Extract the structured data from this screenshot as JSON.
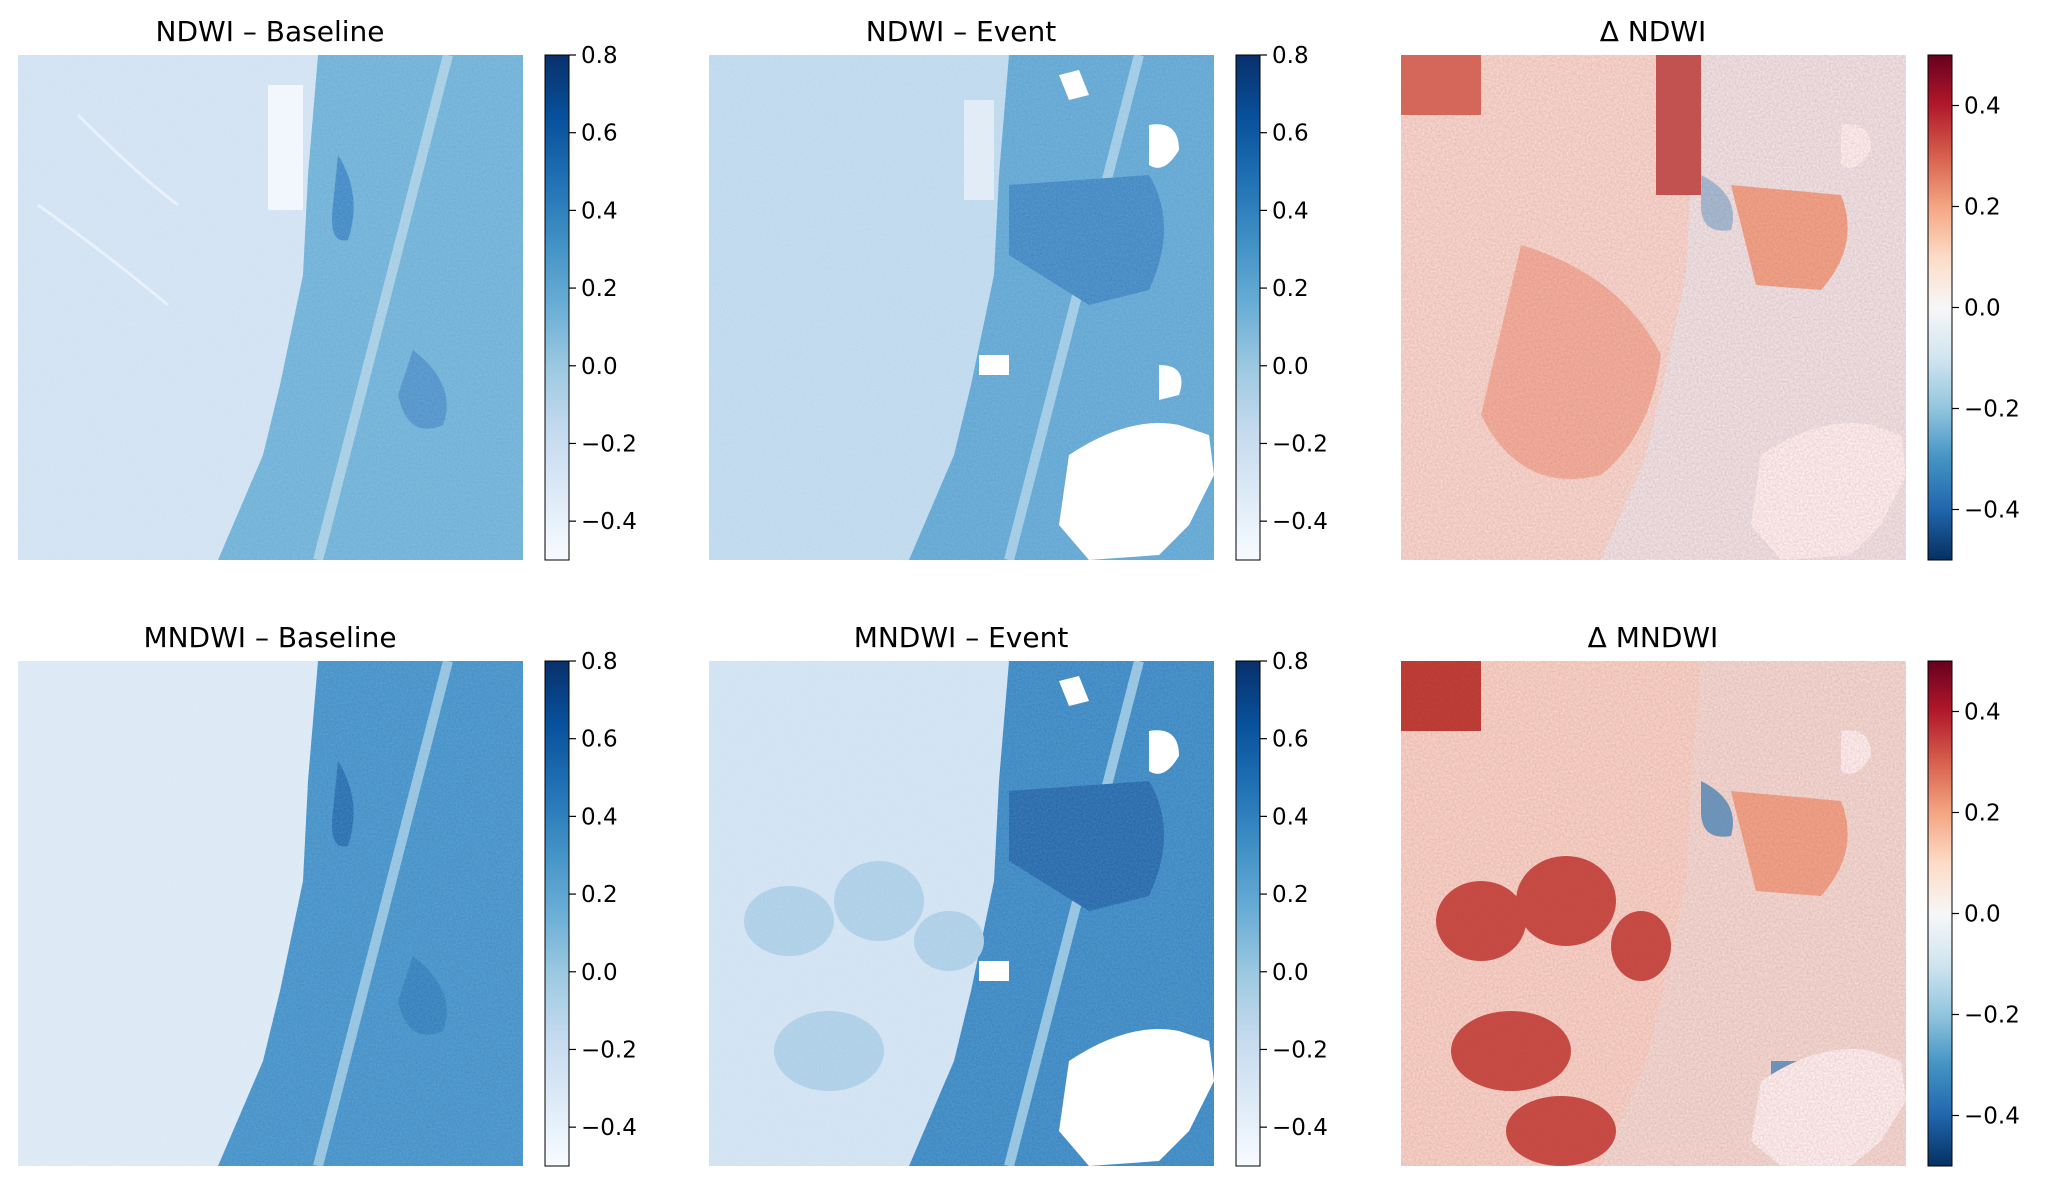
{
  "panels": [
    {
      "title": "NDWI – Baseline",
      "kind": "blues",
      "variant": "baseline",
      "index": "ndwi",
      "colorbar": {
        "ticks": [
          "0.8",
          "0.6",
          "0.4",
          "0.2",
          "0.0",
          "−0.2",
          "−0.4"
        ],
        "range": [
          -0.5,
          0.8
        ]
      }
    },
    {
      "title": "NDWI – Event",
      "kind": "blues",
      "variant": "event",
      "index": "ndwi",
      "colorbar": {
        "ticks": [
          "0.8",
          "0.6",
          "0.4",
          "0.2",
          "0.0",
          "−0.2",
          "−0.4"
        ],
        "range": [
          -0.5,
          0.8
        ]
      }
    },
    {
      "title": "Δ NDWI",
      "kind": "rdbu",
      "variant": "delta",
      "index": "ndwi",
      "colorbar": {
        "ticks": [
          "0.4",
          "0.2",
          "0.0",
          "−0.2",
          "−0.4"
        ],
        "range": [
          -0.5,
          0.5
        ]
      }
    },
    {
      "title": "MNDWI – Baseline",
      "kind": "blues",
      "variant": "baseline",
      "index": "mndwi",
      "colorbar": {
        "ticks": [
          "0.8",
          "0.6",
          "0.4",
          "0.2",
          "0.0",
          "−0.2",
          "−0.4"
        ],
        "range": [
          -0.5,
          0.8
        ]
      }
    },
    {
      "title": "MNDWI – Event",
      "kind": "blues",
      "variant": "event",
      "index": "mndwi",
      "colorbar": {
        "ticks": [
          "0.8",
          "0.6",
          "0.4",
          "0.2",
          "0.0",
          "−0.2",
          "−0.4"
        ],
        "range": [
          -0.5,
          0.8
        ]
      }
    },
    {
      "title": "Δ MNDWI",
      "kind": "rdbu",
      "variant": "delta",
      "index": "mndwi",
      "colorbar": {
        "ticks": [
          "0.4",
          "0.2",
          "0.0",
          "−0.2",
          "−0.4"
        ],
        "range": [
          -0.5,
          0.5
        ]
      }
    }
  ],
  "colormaps": {
    "blues": [
      "#f7fbff",
      "#deebf7",
      "#c6dbef",
      "#9ecae1",
      "#6baed6",
      "#4292c6",
      "#2171b5",
      "#08519c",
      "#08306b"
    ],
    "rdbu": [
      "#053061",
      "#2166ac",
      "#4393c3",
      "#92c5de",
      "#d1e5f0",
      "#f7f7f7",
      "#fddbc7",
      "#f4a582",
      "#d6604d",
      "#b2182b",
      "#67001f"
    ]
  }
}
